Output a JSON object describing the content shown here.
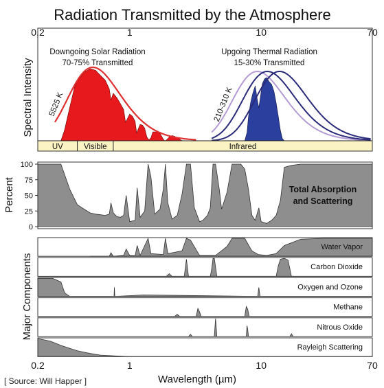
{
  "chart_data": {
    "type": "area",
    "title": "Radiation Transmitted by the Atmosphere",
    "xlabel": "Wavelength (µm)",
    "x_scale": "log",
    "xlim": [
      0.2,
      70
    ],
    "x_ticks": [
      "0.2",
      "1",
      "10",
      "70"
    ],
    "colors": {
      "solar": "#e8191c",
      "thermal": "#2a3f9e",
      "gray": "#8e8e8e",
      "band": "#fbf3c4",
      "curve_red": "#e03030",
      "curve_navy": "#2a2a7a",
      "curve_lilac": "#b49ad4"
    },
    "panels": {
      "spectral": {
        "ylabel": "Spectral Intensity",
        "solar_label": "Downgoing Solar Radiation",
        "solar_sub": "70-75% Transmitted",
        "thermal_label": "Upgoing Thermal Radiation",
        "thermal_sub": "15-30% Transmitted",
        "solar_temp": "5525 K",
        "thermal_temp": "210-310 K",
        "bands": [
          {
            "label": "UV",
            "from": 0.2,
            "to": 0.4
          },
          {
            "label": "Visible",
            "from": 0.4,
            "to": 0.75
          },
          {
            "label": "Infrared",
            "from": 0.75,
            "to": 70
          }
        ],
        "blackbody_solar": {
          "temp_K": 5525,
          "peak_um": 0.52
        },
        "blackbody_thermal": [
          {
            "temp_K": 310,
            "peak_um": 9.3
          },
          {
            "temp_K": 260,
            "peak_um": 11.1
          },
          {
            "temp_K": 210,
            "peak_um": 13.8
          }
        ],
        "solar_transmitted": {
          "x": [
            0.3,
            0.32,
            0.35,
            0.38,
            0.4,
            0.45,
            0.5,
            0.55,
            0.6,
            0.65,
            0.7,
            0.72,
            0.75,
            0.8,
            0.85,
            0.9,
            0.93,
            0.95,
            1.0,
            1.05,
            1.1,
            1.13,
            1.15,
            1.2,
            1.25,
            1.3,
            1.35,
            1.4,
            1.45,
            1.5,
            1.6,
            1.7,
            1.8,
            1.85,
            1.9,
            2.0,
            2.1,
            2.2,
            2.3,
            2.4,
            2.5
          ],
          "y": [
            0.0,
            0.15,
            0.45,
            0.72,
            0.8,
            0.92,
            0.97,
            0.95,
            0.88,
            0.82,
            0.7,
            0.55,
            0.64,
            0.58,
            0.5,
            0.42,
            0.25,
            0.28,
            0.36,
            0.33,
            0.26,
            0.1,
            0.14,
            0.22,
            0.21,
            0.17,
            0.05,
            0.01,
            0.04,
            0.12,
            0.12,
            0.1,
            0.02,
            0.0,
            0.01,
            0.05,
            0.07,
            0.06,
            0.04,
            0.02,
            0.0
          ]
        },
        "thermal_transmitted": {
          "x": [
            7.5,
            7.8,
            8.0,
            8.3,
            8.6,
            9.0,
            9.3,
            9.6,
            9.9,
            10.2,
            10.6,
            11.0,
            11.5,
            12.0,
            12.5,
            13.0,
            13.5,
            14.0,
            14.5,
            15.0
          ],
          "y": [
            0.0,
            0.12,
            0.35,
            0.55,
            0.68,
            0.8,
            0.62,
            0.48,
            0.66,
            0.83,
            0.9,
            0.92,
            0.86,
            0.82,
            0.72,
            0.55,
            0.35,
            0.15,
            0.03,
            0.0
          ]
        }
      },
      "absorption": {
        "ylabel": "Percent",
        "label_line1": "Total Absorption",
        "label_line2": "and Scattering",
        "y_ticks": [
          "0",
          "25",
          "50",
          "75",
          "100"
        ],
        "ylim": [
          0,
          100
        ],
        "x": [
          0.2,
          0.25,
          0.3,
          0.35,
          0.4,
          0.45,
          0.5,
          0.55,
          0.6,
          0.65,
          0.7,
          0.72,
          0.75,
          0.8,
          0.85,
          0.9,
          0.94,
          1.0,
          1.1,
          1.14,
          1.2,
          1.3,
          1.38,
          1.45,
          1.55,
          1.7,
          1.8,
          1.87,
          1.95,
          2.1,
          2.3,
          2.5,
          2.7,
          2.9,
          3.1,
          3.4,
          3.6,
          3.9,
          4.1,
          4.3,
          4.5,
          4.8,
          5.0,
          5.5,
          6.0,
          6.5,
          7.0,
          7.5,
          8.0,
          8.5,
          9.0,
          9.6,
          10.0,
          11.0,
          12.0,
          13.0,
          14.0,
          15.0,
          17.0,
          20.0,
          25.0,
          30.0,
          40.0,
          50.0,
          70.0
        ],
        "y": [
          100,
          100,
          100,
          60,
          35,
          28,
          22,
          20,
          19,
          18,
          20,
          38,
          22,
          16,
          15,
          18,
          50,
          8,
          10,
          62,
          15,
          25,
          100,
          80,
          20,
          28,
          60,
          100,
          38,
          12,
          18,
          52,
          100,
          100,
          30,
          8,
          10,
          18,
          30,
          100,
          100,
          60,
          28,
          55,
          100,
          100,
          100,
          92,
          60,
          18,
          10,
          30,
          8,
          5,
          10,
          18,
          42,
          95,
          98,
          100,
          100,
          100,
          100,
          100,
          100
        ]
      },
      "components": {
        "ylabel": "Major Components",
        "items": [
          {
            "name": "Water Vapor",
            "x": [
              0.5,
              0.7,
              0.72,
              0.75,
              0.9,
              0.94,
              1.0,
              1.1,
              1.14,
              1.2,
              1.38,
              1.45,
              1.8,
              1.87,
              1.95,
              2.5,
              2.7,
              2.9,
              3.4,
              4.5,
              5.5,
              6.0,
              7.5,
              8.5,
              9.5,
              11.0,
              13.0,
              15.0,
              20.0,
              30.0,
              70.0
            ],
            "y": [
              0,
              0,
              20,
              0,
              5,
              40,
              5,
              3,
              60,
              5,
              100,
              15,
              10,
              100,
              15,
              30,
              100,
              90,
              5,
              5,
              55,
              100,
              100,
              30,
              10,
              5,
              15,
              60,
              95,
              100,
              100
            ]
          },
          {
            "name": "Carbon Dioxide",
            "x": [
              0.2,
              1.9,
              2.0,
              2.1,
              2.6,
              2.7,
              2.8,
              4.1,
              4.2,
              4.3,
              4.4,
              4.6,
              13.0,
              13.5,
              14.0,
              15.0,
              16.0,
              17.0,
              70.0
            ],
            "y": [
              0,
              0,
              15,
              0,
              0,
              95,
              0,
              0,
              40,
              100,
              100,
              0,
              0,
              60,
              95,
              100,
              90,
              0,
              0
            ]
          },
          {
            "name": "Oxygen and Ozone",
            "x": [
              0.2,
              0.26,
              0.3,
              0.32,
              0.35,
              0.76,
              0.765,
              0.77,
              1.27,
              9.4,
              9.6,
              9.8,
              70.0
            ],
            "y": [
              100,
              100,
              80,
              20,
              0,
              0,
              50,
              0,
              8,
              0,
              50,
              0,
              0
            ]
          },
          {
            "name": "Methane",
            "x": [
              0.2,
              2.2,
              2.3,
              2.4,
              3.2,
              3.3,
              3.4,
              3.5,
              7.5,
              7.7,
              7.9,
              8.1,
              70.0
            ],
            "y": [
              0,
              0,
              12,
              0,
              0,
              45,
              25,
              0,
              0,
              55,
              40,
              0,
              0
            ]
          },
          {
            "name": "Nitrous Oxide",
            "x": [
              0.2,
              2.8,
              2.9,
              3.0,
              4.4,
              4.5,
              4.6,
              7.7,
              7.8,
              7.9,
              8.0,
              16.5,
              17.0,
              17.5,
              70.0
            ],
            "y": [
              0,
              0,
              12,
              0,
              0,
              100,
              0,
              0,
              60,
              40,
              0,
              0,
              15,
              0,
              0
            ]
          },
          {
            "name": "Rayleigh Scattering",
            "x": [
              0.2,
              0.25,
              0.3,
              0.4,
              0.5,
              0.6,
              0.8,
              1.0,
              70.0
            ],
            "y": [
              100,
              85,
              62,
              32,
              17,
              8,
              3,
              0,
              0
            ]
          }
        ]
      }
    },
    "source_note": "[ Source: Will Happer ]"
  }
}
